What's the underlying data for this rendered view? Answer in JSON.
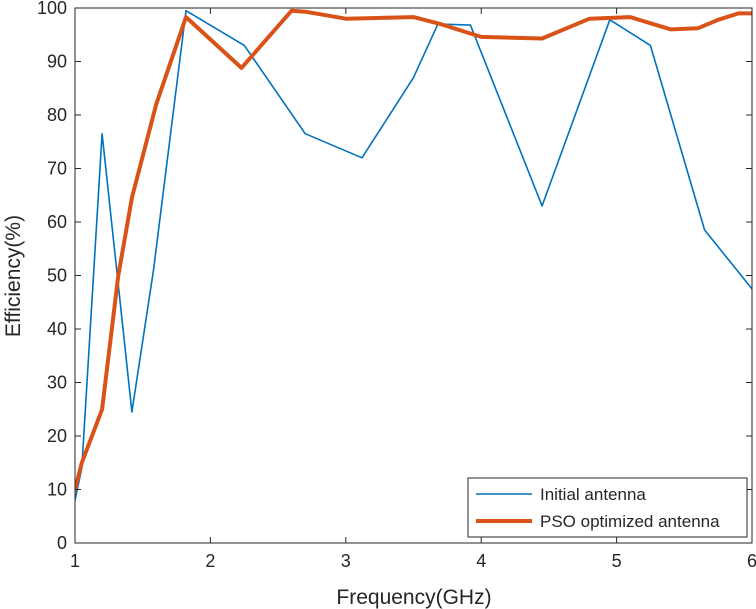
{
  "chart_data": {
    "type": "line",
    "title": "",
    "xlabel": "Frequency(GHz)",
    "ylabel": "Efficiency(%)",
    "xlim": [
      1,
      6
    ],
    "ylim": [
      0,
      100
    ],
    "xticks": [
      1,
      2,
      3,
      4,
      5,
      6
    ],
    "yticks": [
      0,
      10,
      20,
      30,
      40,
      50,
      60,
      70,
      80,
      90,
      100
    ],
    "grid": false,
    "legend_position": "bottom-right",
    "series": [
      {
        "name": "Initial antenna",
        "color": "#0072BD",
        "x": [
          1.0,
          1.05,
          1.2,
          1.42,
          1.58,
          1.82,
          2.25,
          2.7,
          3.12,
          3.5,
          3.68,
          3.92,
          4.45,
          4.95,
          5.25,
          5.65,
          6.0
        ],
        "y": [
          8,
          14,
          76.5,
          24.5,
          51,
          99.5,
          93,
          76.5,
          72,
          87,
          97,
          96.8,
          63,
          97.8,
          93,
          58.5,
          47.5
        ]
      },
      {
        "name": "PSO optimized antenna",
        "color": "#D95319",
        "x": [
          1.0,
          1.05,
          1.2,
          1.32,
          1.42,
          1.6,
          1.82,
          2.23,
          2.6,
          2.7,
          3.0,
          3.5,
          3.7,
          4.0,
          4.45,
          4.8,
          5.1,
          5.4,
          5.6,
          5.75,
          5.9,
          6.0
        ],
        "y": [
          10,
          15,
          25,
          50,
          64.5,
          82,
          98.3,
          88.8,
          99.5,
          99.3,
          98,
          98.3,
          97,
          94.6,
          94.3,
          98,
          98.3,
          96,
          96.2,
          97.8,
          99,
          99
        ]
      }
    ]
  }
}
